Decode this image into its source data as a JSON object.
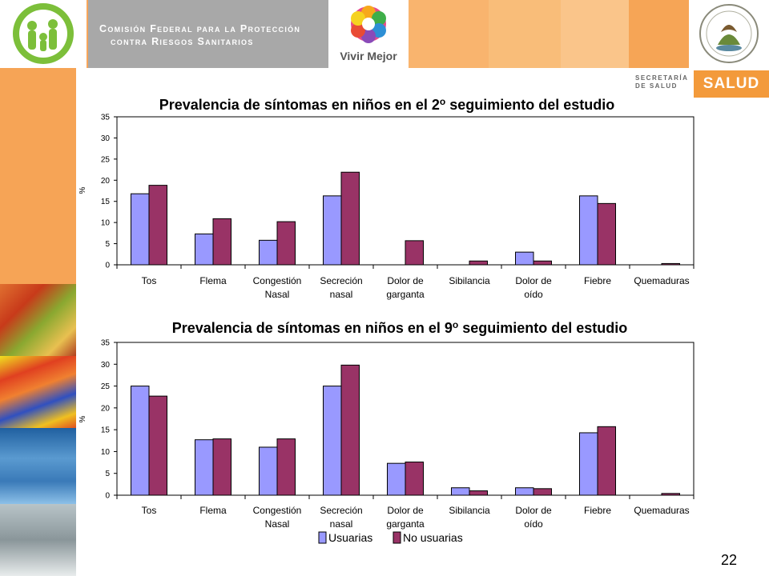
{
  "header": {
    "agency_line1": "Comisión Federal para la Protección",
    "agency_line2": "contra Riesgos Sanitarios",
    "vivir_mejor": "Vivir Mejor",
    "secretaria_line1": "SECRETARÍA",
    "secretaria_line2": "DE SALUD",
    "salud": "SALUD"
  },
  "icons": {
    "logo": "family-logo-icon",
    "flower": "vivir-mejor-flower-icon",
    "seal": "mexico-seal-icon"
  },
  "colors": {
    "usuarias": "#9999ff",
    "no_usuarias": "#993366",
    "header_orange": "#f7a55a",
    "salud_orange": "#f39a3b"
  },
  "page_number": "22",
  "chart_data": [
    {
      "type": "bar",
      "title": "Prevalencia de síntomas en niños en el 2",
      "title_sup": "o",
      "title_end": " seguimiento del estudio",
      "ylabel": "%",
      "ylim": [
        0,
        35
      ],
      "yticks": [
        "0",
        "5",
        "10",
        "15",
        "20",
        "25",
        "30",
        "35"
      ],
      "categories": [
        [
          "Tos"
        ],
        [
          "Flema"
        ],
        [
          "Congestión",
          "Nasal"
        ],
        [
          "Secreción",
          "nasal"
        ],
        [
          "Dolor de",
          "garganta"
        ],
        [
          "Sibilancia"
        ],
        [
          "Dolor de",
          "oído"
        ],
        [
          "Fiebre"
        ],
        [
          "Quemaduras"
        ]
      ],
      "series": [
        {
          "name": "Usuarias",
          "values": [
            16.8,
            7.3,
            5.8,
            16.3,
            0,
            0,
            3.0,
            16.3,
            0
          ]
        },
        {
          "name": "No usuarias",
          "values": [
            18.8,
            10.9,
            10.2,
            21.9,
            5.7,
            0.9,
            0.9,
            14.5,
            0.3
          ]
        }
      ],
      "grid": false,
      "legend": "none"
    },
    {
      "type": "bar",
      "title": "Prevalencia de síntomas en niños en el 9",
      "title_sup": "o",
      "title_end": " seguimiento del estudio",
      "ylabel": "%",
      "ylim": [
        0,
        35
      ],
      "yticks": [
        "0",
        "5",
        "10",
        "15",
        "20",
        "25",
        "30",
        "35"
      ],
      "categories": [
        [
          "Tos"
        ],
        [
          "Flema"
        ],
        [
          "Congestión",
          "Nasal"
        ],
        [
          "Secreción",
          "nasal"
        ],
        [
          "Dolor de",
          "garganta"
        ],
        [
          "Sibilancia"
        ],
        [
          "Dolor de",
          "oído"
        ],
        [
          "Fiebre"
        ],
        [
          "Quemaduras"
        ]
      ],
      "series": [
        {
          "name": "Usuarias",
          "values": [
            25.0,
            12.7,
            11.0,
            25.0,
            7.3,
            1.7,
            1.7,
            14.3,
            0
          ]
        },
        {
          "name": "No usuarias",
          "values": [
            22.7,
            12.9,
            12.9,
            29.8,
            7.6,
            1.0,
            1.5,
            15.7,
            0.4
          ]
        }
      ],
      "grid": false,
      "legend": "bottom"
    }
  ]
}
